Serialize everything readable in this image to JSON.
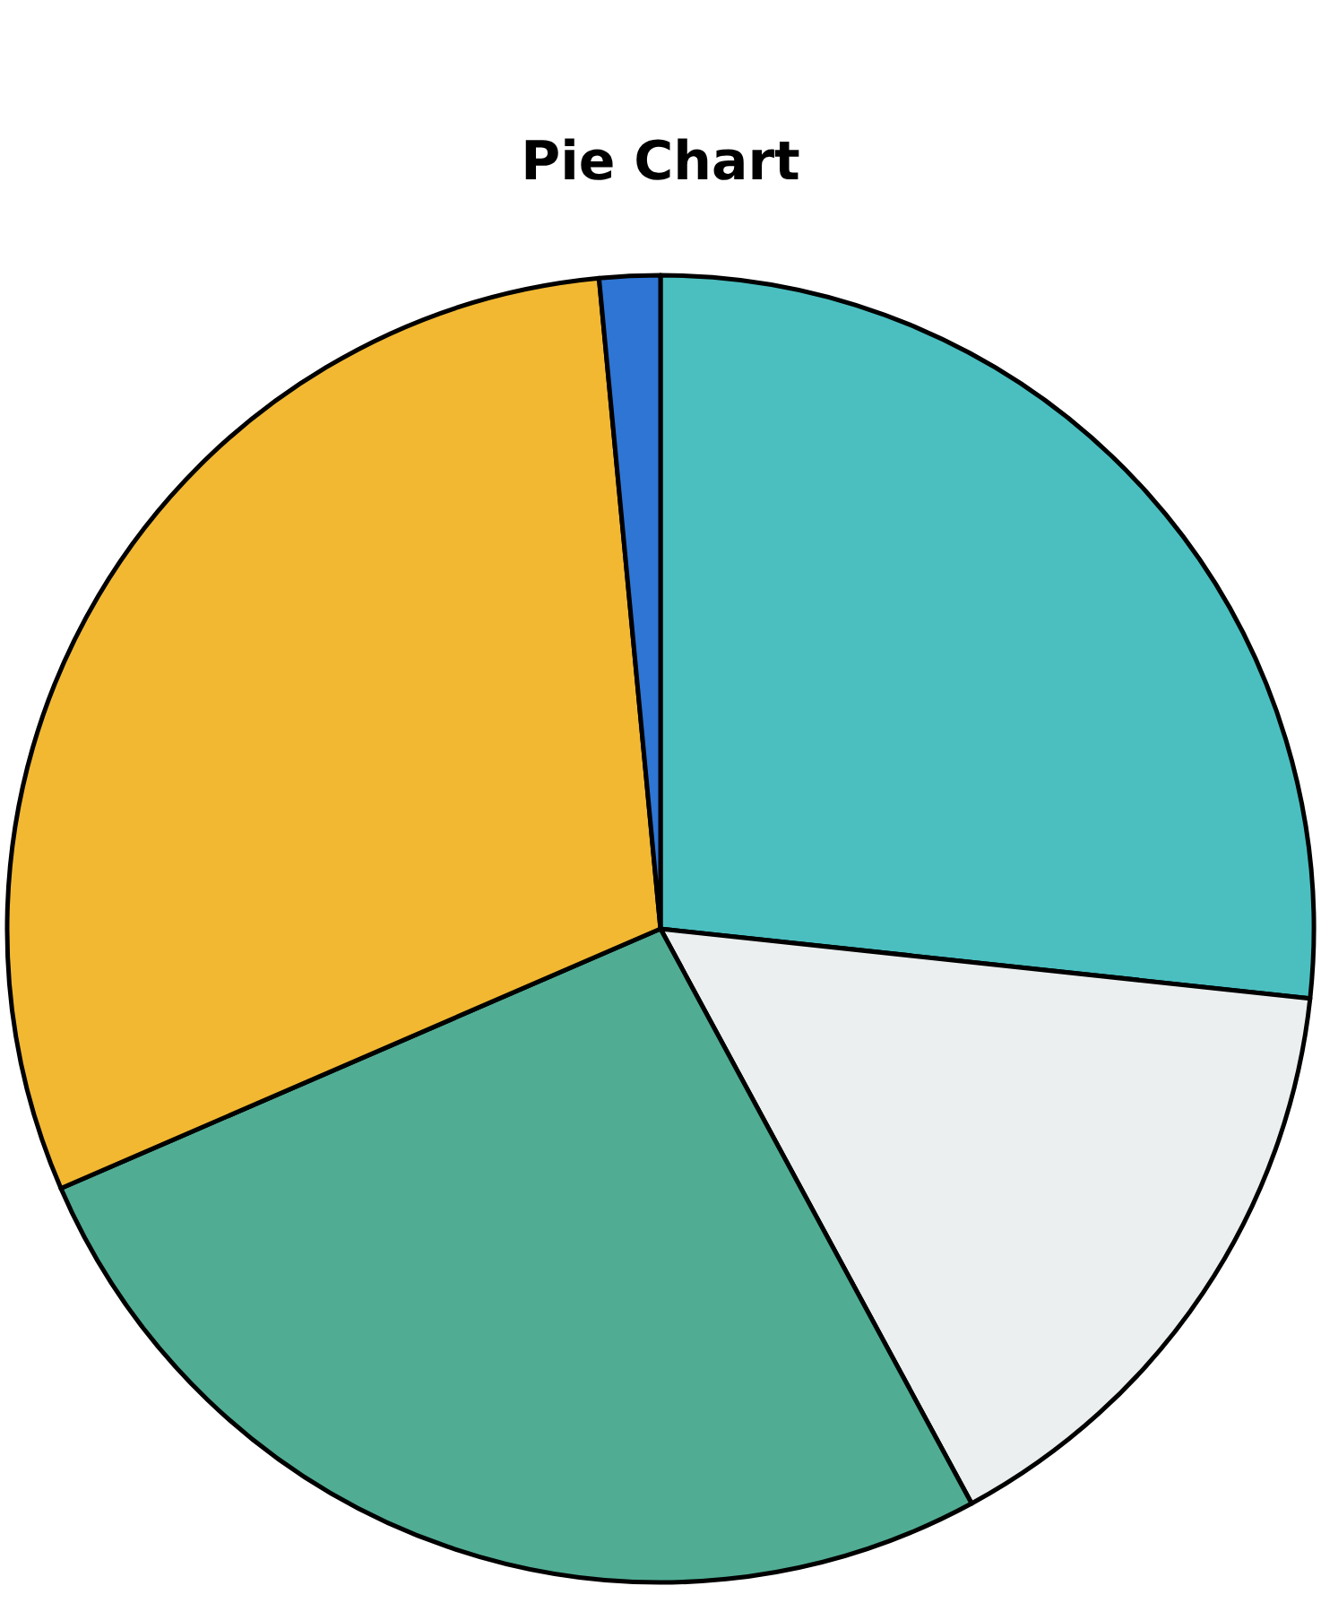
{
  "chart_data": {
    "type": "pie",
    "title": "Pie Chart",
    "categories": [
      null,
      null,
      null,
      null,
      null
    ],
    "values": [
      26.7,
      15.4,
      26.4,
      30.0,
      1.5
    ],
    "colors": [
      "#4bbfc0",
      "#ebeff0",
      "#50ad94",
      "#f2b832",
      "#2e75d4"
    ],
    "legend": false
  }
}
